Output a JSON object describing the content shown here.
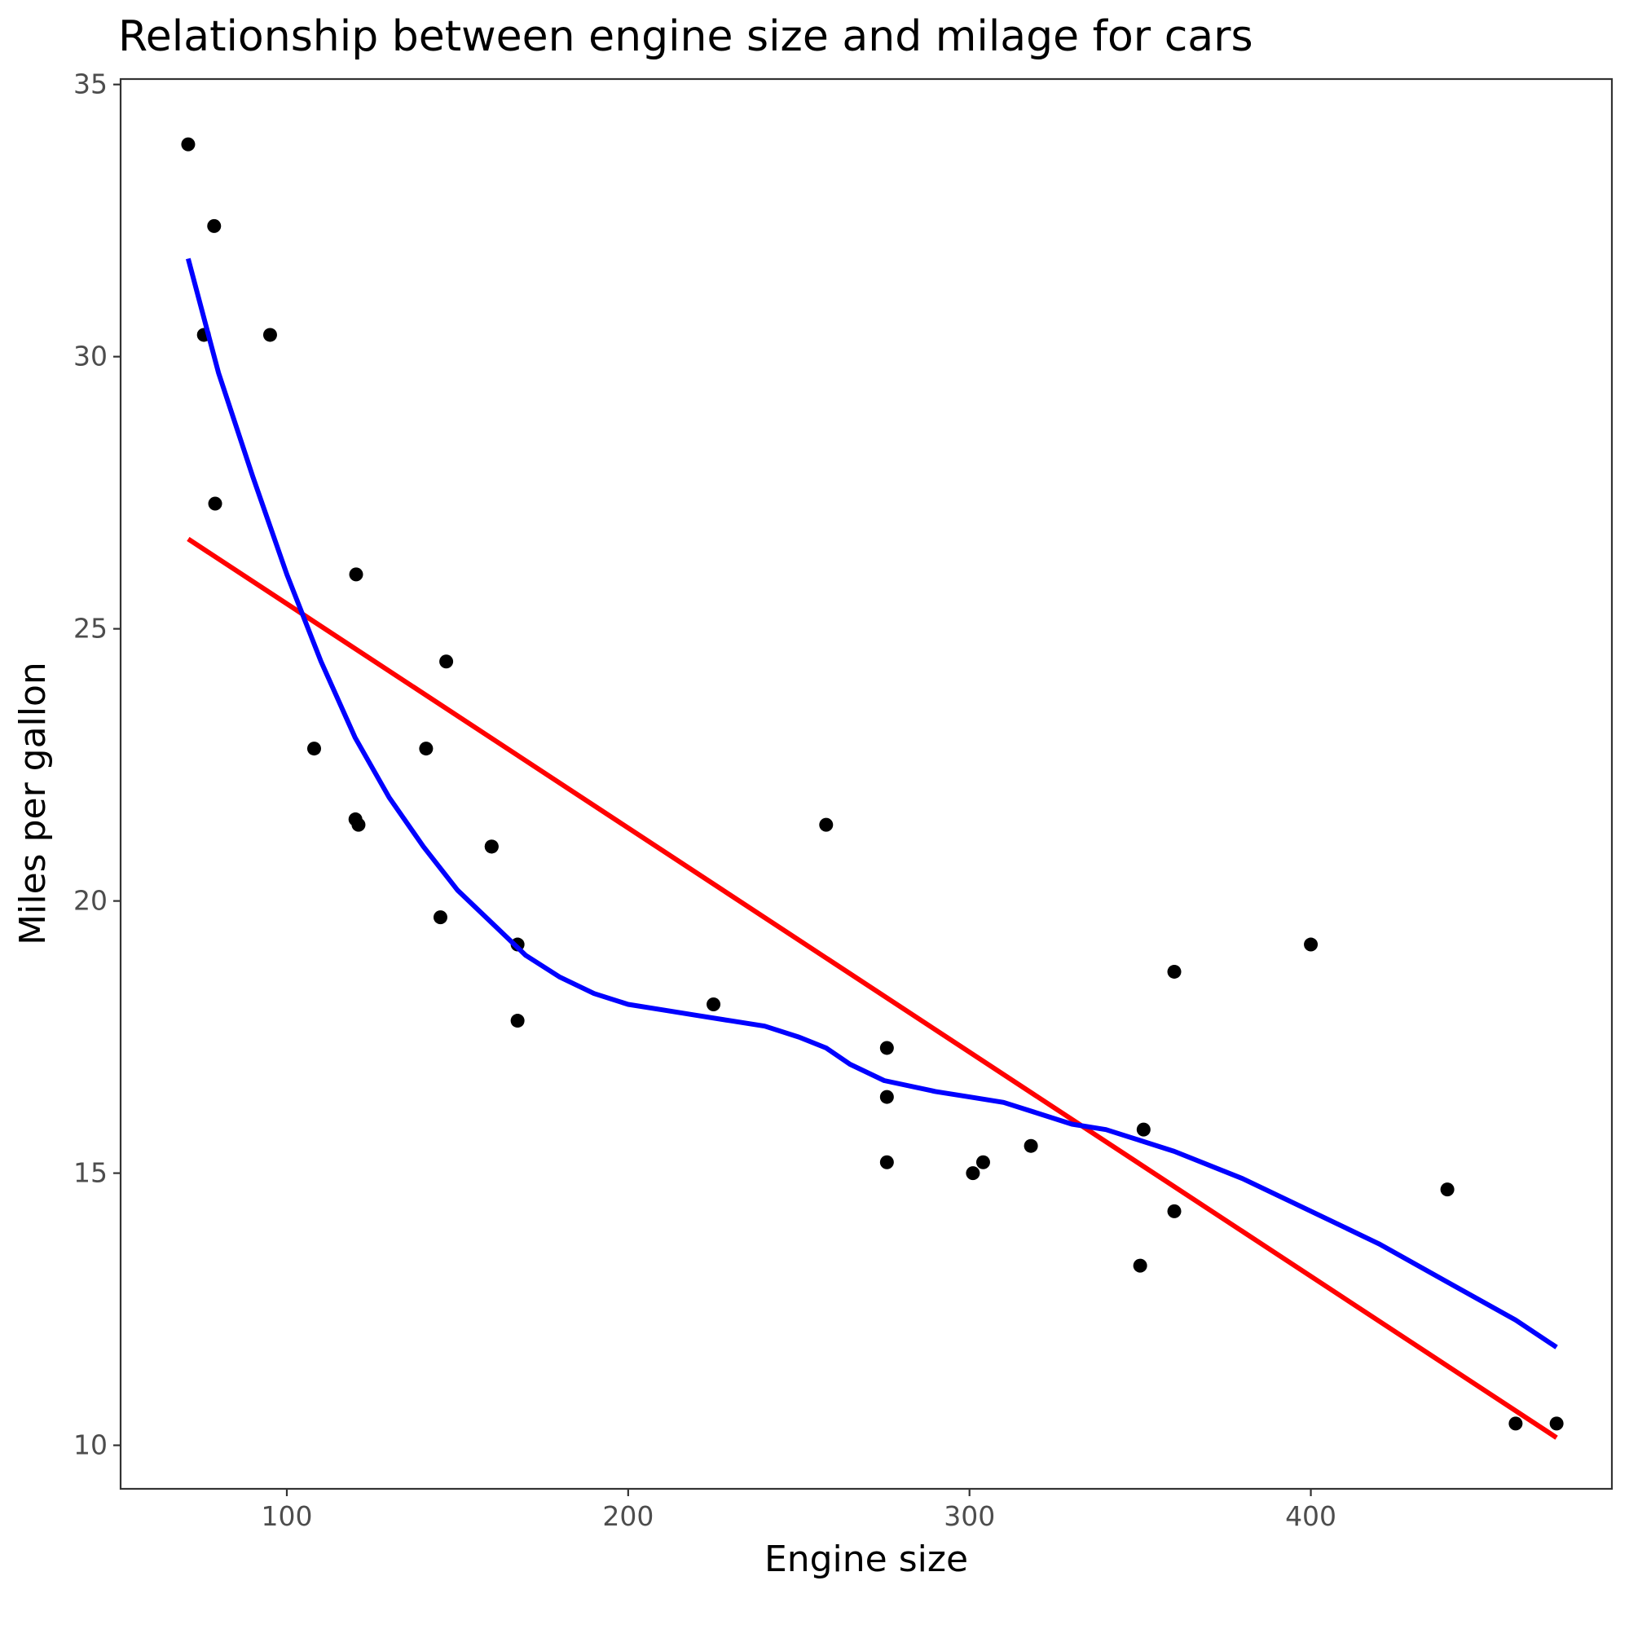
{
  "chart_data": {
    "type": "scatter",
    "title": "Relationship between engine size and milage for cars",
    "xlabel": "Engine size",
    "ylabel": "Miles per gallon",
    "xlim": [
      51.3,
      488.2
    ],
    "ylim": [
      9.2,
      35.1
    ],
    "x_ticks": [
      100,
      200,
      300,
      400
    ],
    "y_ticks": [
      10,
      15,
      20,
      25,
      30,
      35
    ],
    "grid": false,
    "points": [
      {
        "x": 71.1,
        "y": 33.9
      },
      {
        "x": 78.7,
        "y": 32.4
      },
      {
        "x": 75.7,
        "y": 30.4
      },
      {
        "x": 95.1,
        "y": 30.4
      },
      {
        "x": 79.0,
        "y": 27.3
      },
      {
        "x": 120.3,
        "y": 26.0
      },
      {
        "x": 146.7,
        "y": 24.4
      },
      {
        "x": 108.0,
        "y": 22.8
      },
      {
        "x": 140.8,
        "y": 22.8
      },
      {
        "x": 120.1,
        "y": 21.5
      },
      {
        "x": 121.0,
        "y": 21.4
      },
      {
        "x": 258.0,
        "y": 21.4
      },
      {
        "x": 160.0,
        "y": 21.0
      },
      {
        "x": 160.0,
        "y": 21.0
      },
      {
        "x": 145.0,
        "y": 19.7
      },
      {
        "x": 167.6,
        "y": 19.2
      },
      {
        "x": 400.0,
        "y": 19.2
      },
      {
        "x": 360.0,
        "y": 18.7
      },
      {
        "x": 225.0,
        "y": 18.1
      },
      {
        "x": 167.6,
        "y": 17.8
      },
      {
        "x": 275.8,
        "y": 17.3
      },
      {
        "x": 275.8,
        "y": 16.4
      },
      {
        "x": 351.0,
        "y": 15.8
      },
      {
        "x": 318.0,
        "y": 15.5
      },
      {
        "x": 304.0,
        "y": 15.2
      },
      {
        "x": 275.8,
        "y": 15.2
      },
      {
        "x": 301.0,
        "y": 15.0
      },
      {
        "x": 440.0,
        "y": 14.7
      },
      {
        "x": 360.0,
        "y": 14.3
      },
      {
        "x": 350.0,
        "y": 13.3
      },
      {
        "x": 472.0,
        "y": 10.4
      },
      {
        "x": 460.0,
        "y": 10.4
      }
    ],
    "series": [
      {
        "type": "line",
        "color": "#ff0000",
        "x": [
          71.1,
          472.0
        ],
        "y": [
          26.65,
          10.14
        ]
      },
      {
        "type": "line",
        "color": "#0000ff",
        "x": [
          71.1,
          80,
          90,
          100,
          110,
          120,
          130,
          140,
          150,
          160,
          170,
          180,
          190,
          200,
          210,
          220,
          230,
          240,
          250,
          258,
          265,
          275,
          290,
          300,
          310,
          320,
          330,
          340,
          350,
          360,
          380,
          400,
          420,
          440,
          460,
          472
        ],
        "y": [
          31.8,
          29.7,
          27.8,
          26.0,
          24.4,
          23.0,
          21.9,
          21.0,
          20.2,
          19.6,
          19.0,
          18.6,
          18.3,
          18.1,
          18.0,
          17.9,
          17.8,
          17.7,
          17.5,
          17.3,
          17.0,
          16.7,
          16.5,
          16.4,
          16.3,
          16.1,
          15.9,
          15.8,
          15.6,
          15.4,
          14.9,
          14.3,
          13.7,
          13.0,
          12.3,
          11.8
        ]
      }
    ]
  }
}
